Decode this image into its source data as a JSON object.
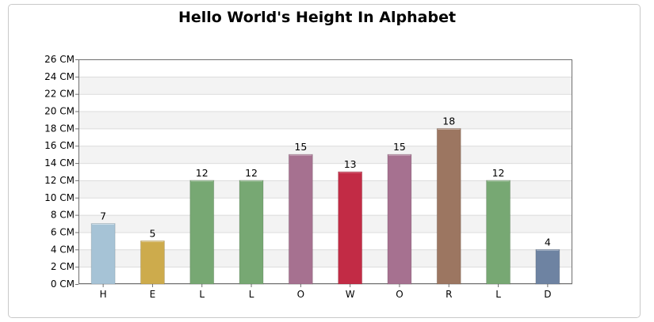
{
  "chart_data": {
    "type": "bar",
    "title": "Hello World's Height In Alphabet",
    "xlabel": "",
    "ylabel": "",
    "categories": [
      "H",
      "E",
      "L",
      "L",
      "O",
      "W",
      "O",
      "R",
      "L",
      "D"
    ],
    "values": [
      7,
      5,
      12,
      12,
      15,
      13,
      15,
      18,
      12,
      4
    ],
    "colors": [
      "#a6c3d6",
      "#cdab4c",
      "#77a873",
      "#77a873",
      "#a67190",
      "#c22b45",
      "#a67190",
      "#9c7661",
      "#77a873",
      "#6e83a2"
    ],
    "ylim": [
      0,
      26
    ],
    "ytick_step": 2,
    "ytick_suffix": " CM",
    "grid": true,
    "legend": "none"
  }
}
